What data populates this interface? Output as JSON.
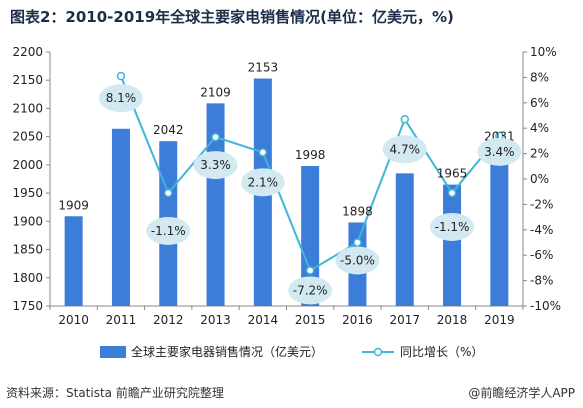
{
  "title": "图表2：2010-2019年全球主要家电销售情况(单位：亿美元，%)",
  "source": "资料来源：Statista 前瞻产业研究院整理",
  "brand": "@前瞻经济学人APP",
  "colors": {
    "bar": "#3b7dd8",
    "line": "#3fb6d6",
    "bubble": "#d3e9f1",
    "axis": "#888888",
    "title": "#1a2e4a"
  },
  "chart_data": {
    "type": "bar",
    "categories": [
      "2010",
      "2011",
      "2012",
      "2013",
      "2014",
      "2015",
      "2016",
      "2017",
      "2018",
      "2019"
    ],
    "series": [
      {
        "name": "全球主要家电器销售情况（亿美元）",
        "type": "bar",
        "axis": "left",
        "values": [
          1909,
          2064,
          2042,
          2109,
          2153,
          1998,
          1898,
          1985,
          1965,
          2031
        ]
      },
      {
        "name": "同比增长（%）",
        "type": "line",
        "axis": "right",
        "values": [
          null,
          8.1,
          -1.1,
          3.3,
          2.1,
          -7.2,
          -5.0,
          4.7,
          -1.1,
          3.4
        ]
      }
    ],
    "bar_labels": [
      "1909",
      "",
      "2042",
      "2109",
      "2153",
      "1998",
      "1898",
      "",
      "1965",
      "2031"
    ],
    "line_labels": [
      "",
      "8.1%",
      "-1.1%",
      "3.3%",
      "2.1%",
      "-7.2%",
      "-5.0%",
      "4.7%",
      "-1.1%",
      "3.4%"
    ],
    "y_left": {
      "min": 1750,
      "max": 2200,
      "ticks": [
        "1750",
        "1800",
        "1850",
        "1900",
        "1950",
        "2000",
        "2050",
        "2100",
        "2150",
        "2200"
      ]
    },
    "y_right": {
      "min": -10,
      "max": 10,
      "ticks": [
        "-10%",
        "-8%",
        "-6%",
        "-4%",
        "-2%",
        "0%",
        "2%",
        "4%",
        "6%",
        "8%",
        "10%"
      ]
    },
    "legend": {
      "position": "bottom",
      "items": [
        "全球主要家电器销售情况（亿美元）",
        "同比增长（%）"
      ]
    },
    "grid": false
  }
}
